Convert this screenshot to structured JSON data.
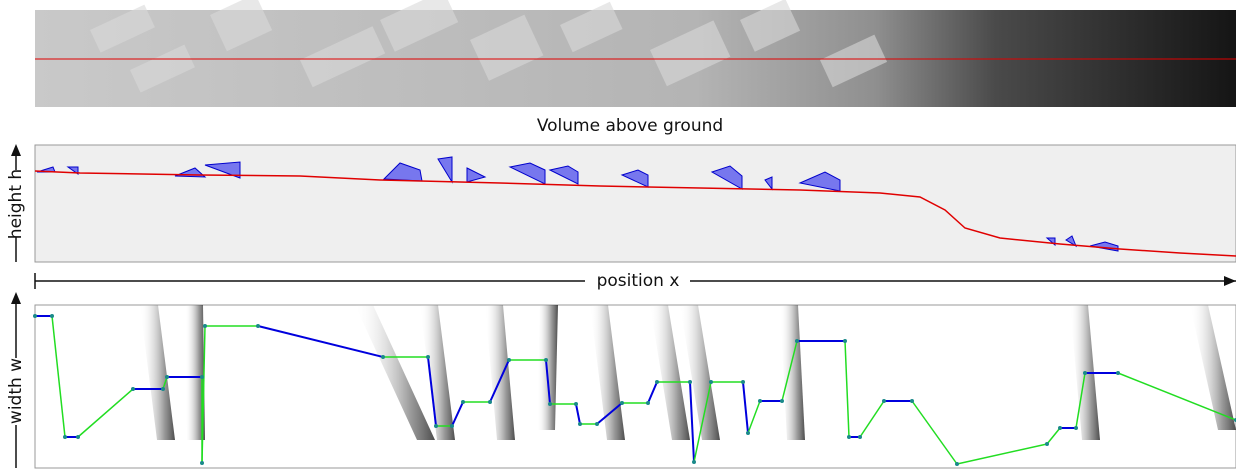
{
  "figure": {
    "middle_title": "Volume above ground",
    "y_label_top": "height h",
    "x_label": "position x",
    "y_label_bottom": "width w"
  }
}
